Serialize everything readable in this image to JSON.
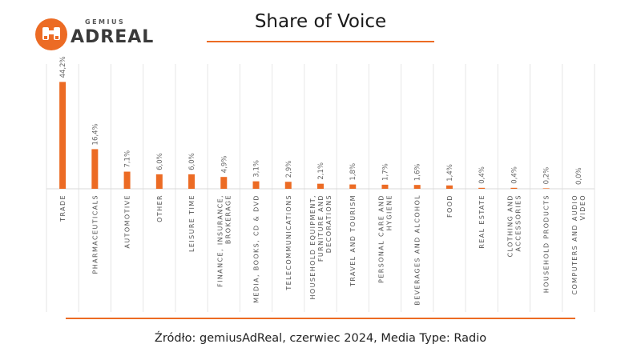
{
  "brand": {
    "small": "GEMIUS",
    "name": "ADREAL",
    "color": "#ec6b24"
  },
  "title": "Share of Voice",
  "source": "Źródło: gemiusAdReal, czerwiec 2024, Media Type: Radio",
  "chart_data": {
    "type": "bar",
    "title": "Share of Voice",
    "bar_color": "#ec6b24",
    "grid": "vertical separators",
    "categories": [
      [
        "TRADE"
      ],
      [
        "PHARMACEUTICALS"
      ],
      [
        "AUTOMOTIVE"
      ],
      [
        "OTHER"
      ],
      [
        "LEISURE TIME"
      ],
      [
        "FINANCE, INSURANCE,",
        "BROKERAGE"
      ],
      [
        "MEDIA, BOOKS, CD & DVD"
      ],
      [
        "TELECOMMUNICATIONS"
      ],
      [
        "HOUSEHOLD EQUIPMENT,",
        "FURNITURE AND",
        "DECORATIONS"
      ],
      [
        "TRAVEL AND TOURISM"
      ],
      [
        "PERSONAL CARE AND",
        "HYGIENE"
      ],
      [
        "BEVERAGES AND ALCOHOL"
      ],
      [
        "FOOD"
      ],
      [
        "REAL ESTATE"
      ],
      [
        "CLOTHING AND",
        "ACCESSORIES"
      ],
      [
        "HOUSEHOLD PRODUCTS"
      ],
      [
        "COMPUTERS AND AUDIO",
        "VIDEO"
      ]
    ],
    "values": [
      44.2,
      16.4,
      7.1,
      6.0,
      6.0,
      4.9,
      3.1,
      2.9,
      2.1,
      1.8,
      1.7,
      1.6,
      1.4,
      0.4,
      0.4,
      0.2,
      0.0
    ],
    "value_labels": [
      "44,2%",
      "16,4%",
      "7,1%",
      "6,0%",
      "6,0%",
      "4,9%",
      "3,1%",
      "2,9%",
      "2,1%",
      "1,8%",
      "1,7%",
      "1,6%",
      "1,4%",
      "0,4%",
      "0,4%",
      "0,2%",
      "0,0%"
    ],
    "ylim": [
      0,
      45
    ]
  }
}
